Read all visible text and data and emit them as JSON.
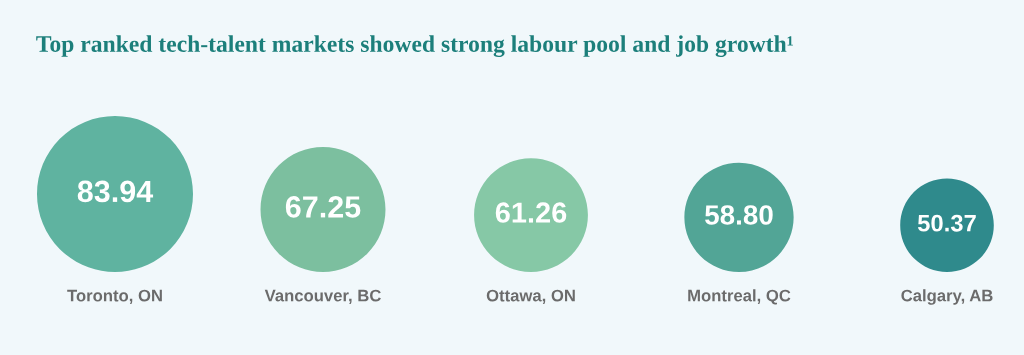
{
  "chart_data": {
    "type": "other",
    "title": "Top ranked tech-talent markets showed strong labour pool and job growth¹",
    "categories": [
      "Toronto, ON",
      "Vancouver, BC",
      "Ottawa, ON",
      "Montreal, QC",
      "Calgary, AB"
    ],
    "values": [
      83.94,
      67.25,
      61.26,
      58.8,
      50.37
    ],
    "value_labels": [
      "83.94",
      "67.25",
      "61.26",
      "58.80",
      "50.37"
    ],
    "colors": [
      "#5fb3a0",
      "#7cbf9f",
      "#86c8a6",
      "#52a596",
      "#2f8a8c"
    ]
  }
}
